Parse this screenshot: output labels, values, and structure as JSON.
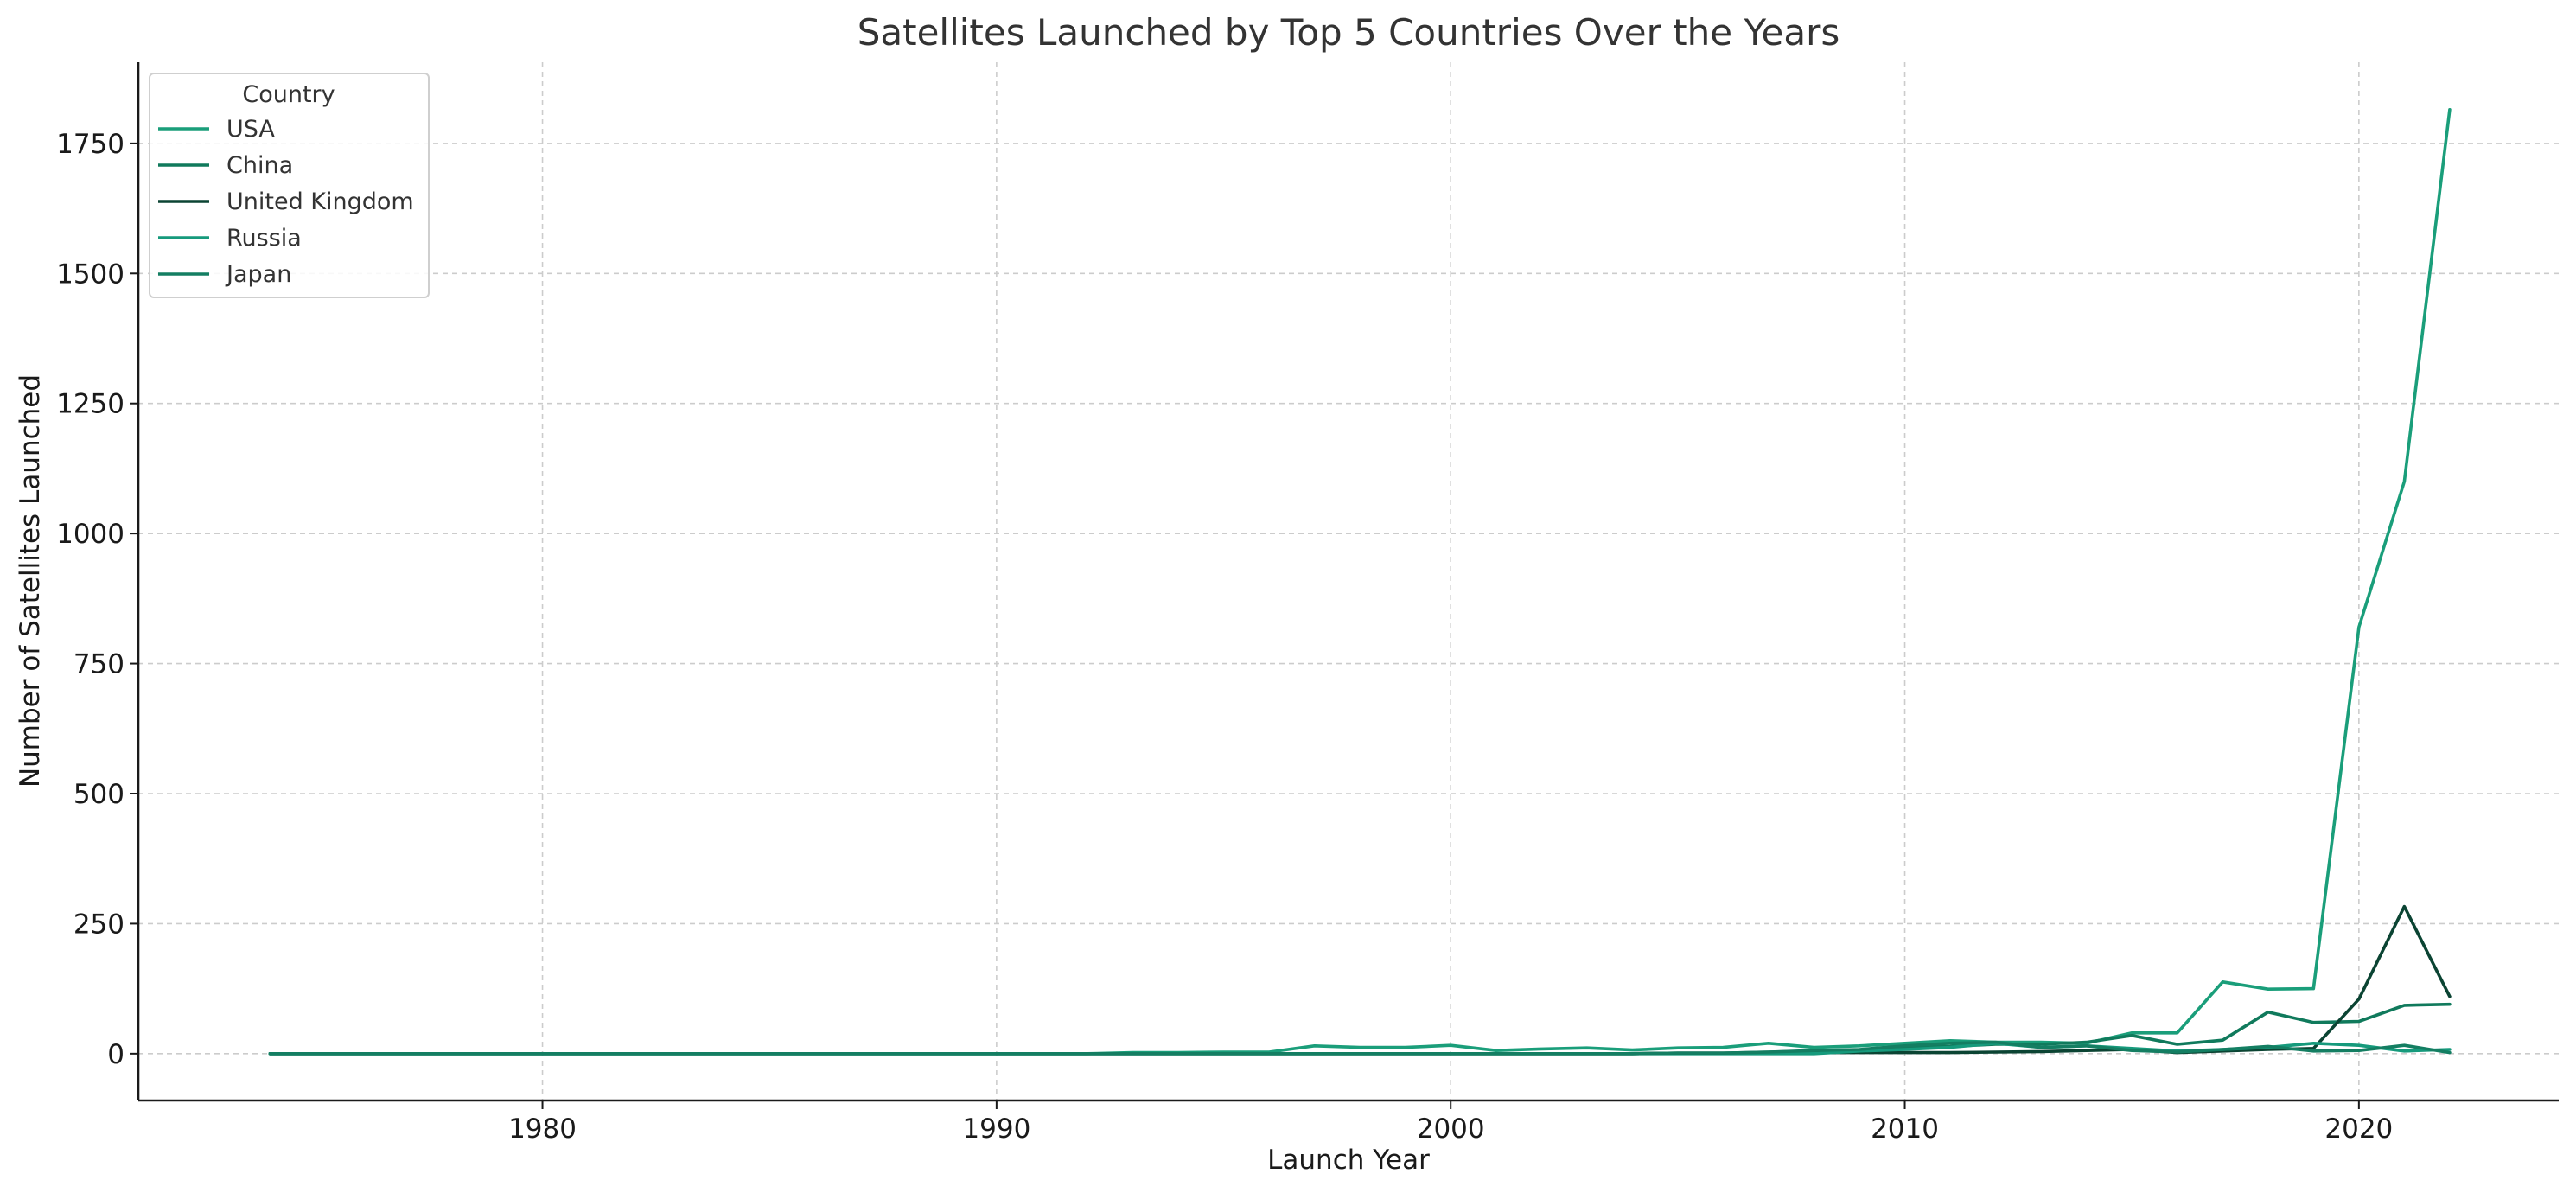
{
  "chart_data": {
    "type": "line",
    "title": "Satellites Launched by Top 5 Countries Over the Years",
    "xlabel": "Launch Year",
    "ylabel": "Number of Satellites Launched",
    "xlim": [
      1971.1,
      2024.4
    ],
    "ylim": [
      -90,
      1906
    ],
    "xticks": [
      1980,
      1990,
      2000,
      2010,
      2020
    ],
    "yticks": [
      0,
      250,
      500,
      750,
      1000,
      1250,
      1500,
      1750
    ],
    "grid": true,
    "legend": {
      "title": "Country",
      "placement": "top-left"
    },
    "x": [
      1974,
      1975,
      1976,
      1977,
      1978,
      1979,
      1980,
      1981,
      1982,
      1983,
      1984,
      1985,
      1986,
      1987,
      1988,
      1989,
      1990,
      1991,
      1992,
      1993,
      1994,
      1995,
      1996,
      1997,
      1998,
      1999,
      2000,
      2001,
      2002,
      2003,
      2004,
      2005,
      2006,
      2007,
      2008,
      2009,
      2010,
      2011,
      2012,
      2013,
      2014,
      2015,
      2016,
      2017,
      2018,
      2019,
      2020,
      2021,
      2022
    ],
    "series": [
      {
        "name": "USA",
        "color": "#1a9e7a",
        "values": [
          0,
          0,
          0,
          0,
          0,
          0,
          0,
          0,
          0,
          0,
          0,
          0,
          0,
          0,
          0,
          0,
          0,
          0,
          0,
          2,
          2,
          3,
          3,
          15,
          12,
          12,
          16,
          6,
          9,
          11,
          7,
          11,
          12,
          20,
          12,
          15,
          20,
          25,
          22,
          22,
          20,
          40,
          40,
          138,
          124,
          125,
          820,
          1100,
          1815
        ]
      },
      {
        "name": "China",
        "color": "#107a5c",
        "values": [
          0,
          0,
          0,
          0,
          0,
          0,
          0,
          0,
          0,
          0,
          0,
          0,
          0,
          0,
          0,
          0,
          0,
          0,
          0,
          0,
          0,
          0,
          0,
          0,
          0,
          0,
          0,
          0,
          0,
          0,
          0,
          1,
          1,
          3,
          5,
          6,
          12,
          14,
          18,
          18,
          22,
          35,
          18,
          26,
          80,
          60,
          62,
          93,
          95
        ]
      },
      {
        "name": "United Kingdom",
        "color": "#0b4433",
        "values": [
          0,
          0,
          0,
          0,
          0,
          0,
          0,
          0,
          0,
          0,
          0,
          0,
          0,
          0,
          0,
          0,
          0,
          0,
          0,
          0,
          0,
          0,
          0,
          0,
          0,
          0,
          0,
          0,
          0,
          0,
          0,
          1,
          1,
          1,
          2,
          2,
          2,
          2,
          3,
          4,
          6,
          8,
          2,
          5,
          8,
          10,
          105,
          283,
          110
        ]
      },
      {
        "name": "Russia",
        "color": "#169a7c",
        "values": [
          0,
          0,
          0,
          0,
          0,
          0,
          0,
          0,
          0,
          0,
          0,
          0,
          0,
          0,
          0,
          0,
          0,
          0,
          0,
          0,
          0,
          0,
          0,
          0,
          0,
          0,
          0,
          0,
          0,
          0,
          0,
          0,
          0,
          0,
          0,
          5,
          8,
          12,
          20,
          12,
          15,
          10,
          5,
          8,
          12,
          20,
          16,
          5,
          8
        ]
      },
      {
        "name": "Japan",
        "color": "#147e62",
        "values": [
          0,
          0,
          0,
          0,
          0,
          0,
          0,
          0,
          0,
          0,
          0,
          0,
          0,
          0,
          0,
          0,
          0,
          0,
          0,
          0,
          0,
          0,
          0,
          0,
          0,
          0,
          0,
          0,
          0,
          0,
          0,
          1,
          1,
          3,
          6,
          8,
          15,
          20,
          22,
          12,
          15,
          6,
          3,
          8,
          14,
          5,
          6,
          16,
          2
        ]
      }
    ]
  }
}
